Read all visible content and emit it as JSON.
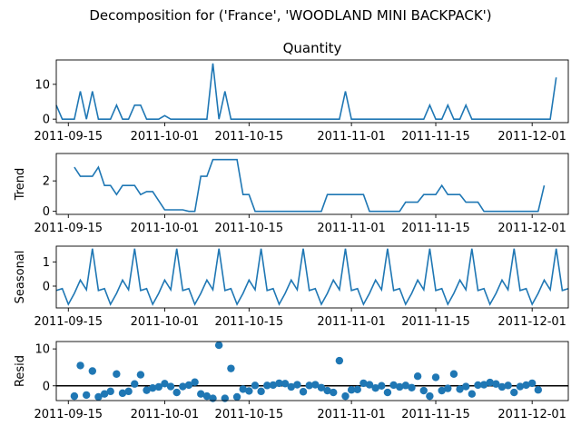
{
  "figure": {
    "suptitle": "Decomposition for ('France', 'WOODLAND MINI BACKPACK')",
    "line_color": "#1f77b4",
    "marker_color": "#1f77b4"
  },
  "chart_data": [
    {
      "type": "line",
      "title": "Quantity",
      "ylabel": "",
      "x_start": "2011-09-13",
      "xlim": [
        "2011-09-13",
        "2011-12-07"
      ],
      "ylim": [
        -1,
        17
      ],
      "yticks": [
        0,
        10
      ],
      "xtick_labels": [
        "2011-09-15",
        "2011-10-01",
        "2011-10-15",
        "2011-11-01",
        "2011-11-15",
        "2011-12-01"
      ],
      "values": [
        4,
        0,
        0,
        0,
        8,
        0,
        8,
        0,
        0,
        0,
        4,
        0,
        0,
        4,
        4,
        0,
        0,
        0,
        1,
        0,
        0,
        0,
        0,
        0,
        0,
        0,
        16,
        0,
        8,
        0,
        0,
        0,
        0,
        0,
        0,
        0,
        0,
        0,
        0,
        0,
        0,
        0,
        0,
        0,
        0,
        0,
        0,
        0,
        8,
        0,
        0,
        0,
        0,
        0,
        0,
        0,
        0,
        0,
        0,
        0,
        0,
        0,
        4,
        0,
        0,
        4,
        0,
        0,
        4,
        0,
        0,
        0,
        0,
        0,
        0,
        0,
        0,
        0,
        0,
        0,
        0,
        0,
        0,
        12
      ]
    },
    {
      "type": "line",
      "title": "",
      "ylabel": "Trend",
      "x_start": "2011-09-13",
      "xlim": [
        "2011-09-13",
        "2011-12-07"
      ],
      "ylim": [
        -0.2,
        3.8
      ],
      "yticks": [
        0,
        2
      ],
      "xtick_labels": [
        "2011-09-15",
        "2011-10-01",
        "2011-10-15",
        "2011-11-01",
        "2011-11-15",
        "2011-12-01"
      ],
      "values": [
        null,
        null,
        null,
        2.9,
        2.3,
        2.3,
        2.3,
        2.9,
        1.7,
        1.7,
        1.1,
        1.7,
        1.7,
        1.7,
        1.1,
        1.3,
        1.3,
        0.7,
        0.1,
        0.1,
        0.1,
        0.1,
        0.0,
        0.0,
        2.3,
        2.3,
        3.4,
        3.4,
        3.4,
        3.4,
        3.4,
        1.1,
        1.1,
        0,
        0,
        0,
        0,
        0,
        0,
        0,
        0,
        0,
        0,
        0,
        0,
        1.1,
        1.1,
        1.1,
        1.1,
        1.1,
        1.1,
        1.1,
        0,
        0,
        0,
        0,
        0,
        0,
        0.6,
        0.6,
        0.6,
        1.1,
        1.1,
        1.1,
        1.7,
        1.1,
        1.1,
        1.1,
        0.6,
        0.6,
        0.6,
        0,
        0,
        0,
        0,
        0,
        0,
        0,
        0,
        0,
        0,
        1.7,
        null,
        null,
        null
      ]
    },
    {
      "type": "line",
      "title": "",
      "ylabel": "Seasonal",
      "x_start": "2011-09-13",
      "xlim": [
        "2011-09-13",
        "2011-12-07"
      ],
      "ylim": [
        -0.9,
        1.65
      ],
      "yticks": [
        0,
        1
      ],
      "xtick_labels": [
        "2011-09-15",
        "2011-10-01",
        "2011-10-15",
        "2011-11-01",
        "2011-11-15",
        "2011-12-01"
      ],
      "period": 7,
      "pattern": [
        -0.18,
        -0.1,
        -0.75,
        -0.3,
        0.25,
        -0.15,
        1.55
      ],
      "values": []
    },
    {
      "type": "scatter",
      "title": "",
      "ylabel": "Resid",
      "x_start": "2011-09-13",
      "xlim": [
        "2011-09-13",
        "2011-12-07"
      ],
      "ylim": [
        -4,
        12
      ],
      "yticks": [
        0,
        10
      ],
      "xtick_labels": [
        "2011-09-15",
        "2011-10-01",
        "2011-10-15",
        "2011-11-01",
        "2011-11-15",
        "2011-12-01"
      ],
      "baseline": 0,
      "values": [
        null,
        null,
        null,
        -2.8,
        5.5,
        -2.5,
        4.0,
        -3.0,
        -2.2,
        -1.5,
        3.2,
        -2.0,
        -1.5,
        0.5,
        3.0,
        -1.2,
        -0.6,
        -0.3,
        0.6,
        -0.2,
        -1.8,
        -0.2,
        0.2,
        1.0,
        -2.2,
        -2.8,
        -3.4,
        11.0,
        -3.4,
        4.7,
        -3.0,
        -0.9,
        -1.4,
        0.1,
        -1.5,
        0.1,
        0.2,
        0.7,
        0.6,
        -0.3,
        0.3,
        -1.6,
        0.1,
        0.3,
        -0.5,
        -1.3,
        -1.8,
        6.8,
        -2.8,
        -1.1,
        -1.0,
        0.7,
        0.3,
        -0.6,
        0.0,
        -1.8,
        0.2,
        -0.3,
        0.1,
        -0.5,
        2.6,
        -1.3,
        -2.8,
        2.3,
        -1.3,
        -0.7,
        3.2,
        -0.9,
        -0.2,
        -2.2,
        0.2,
        0.3,
        0.9,
        0.5,
        -0.3,
        0.1,
        -1.8,
        -0.2,
        0.2,
        0.7,
        -1.1,
        null,
        null,
        null
      ]
    }
  ]
}
